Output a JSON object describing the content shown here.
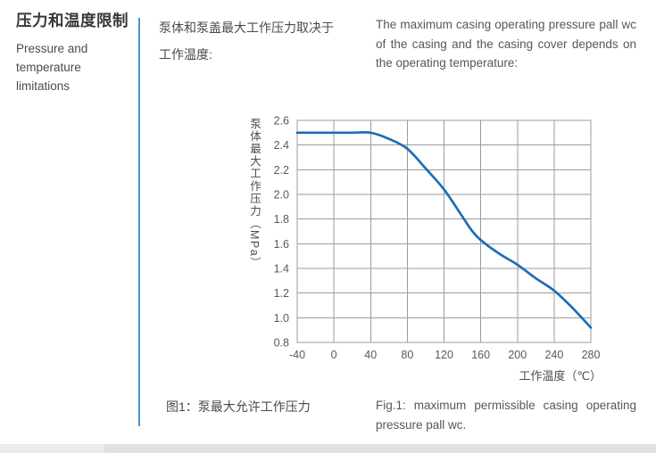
{
  "section": {
    "title_zh": "压力和温度限制",
    "title_en": "Pressure and temperature limitations",
    "intro_zh": "泵体和泵盖最大工作压力取决于\n工作温度:",
    "intro_en": "The maximum casing operating pressure pall wc of the casing and the casing cover depends on the operating temperature:",
    "caption_zh": "图1：泵最大允许工作压力",
    "caption_en": "Fig.1: maximum permissible casing operating pressure pall wc.",
    "divider_color": "#4596d3"
  },
  "chart_data": {
    "type": "line",
    "title": "",
    "xlabel": "工作温度（℃）",
    "ylabel": "泵体最大工作压力（MPa）",
    "x": [
      -40,
      0,
      20,
      40,
      60,
      80,
      100,
      120,
      140,
      150,
      160,
      180,
      200,
      220,
      240,
      260,
      280
    ],
    "series": [
      {
        "name": "泵最大允许工作压力",
        "values": [
          2.5,
          2.5,
          2.5,
          2.5,
          2.45,
          2.37,
          2.21,
          2.04,
          1.82,
          1.71,
          1.63,
          1.52,
          1.43,
          1.32,
          1.22,
          1.08,
          0.92
        ]
      }
    ],
    "xlim": [
      -40,
      280
    ],
    "ylim": [
      0.8,
      2.6
    ],
    "xticks": [
      -40,
      0,
      40,
      80,
      120,
      160,
      200,
      240,
      280
    ],
    "yticks": [
      0.8,
      1.0,
      1.2,
      1.4,
      1.6,
      1.8,
      2.0,
      2.2,
      2.4,
      2.6
    ],
    "grid": true,
    "legend": false,
    "line_color": "#1e6db6",
    "grid_color": "#9c9c9c",
    "tick_color": "#595959"
  },
  "footer": {
    "bar_left_color": "#ececee",
    "bar_right_color": "#dfe1e6"
  }
}
